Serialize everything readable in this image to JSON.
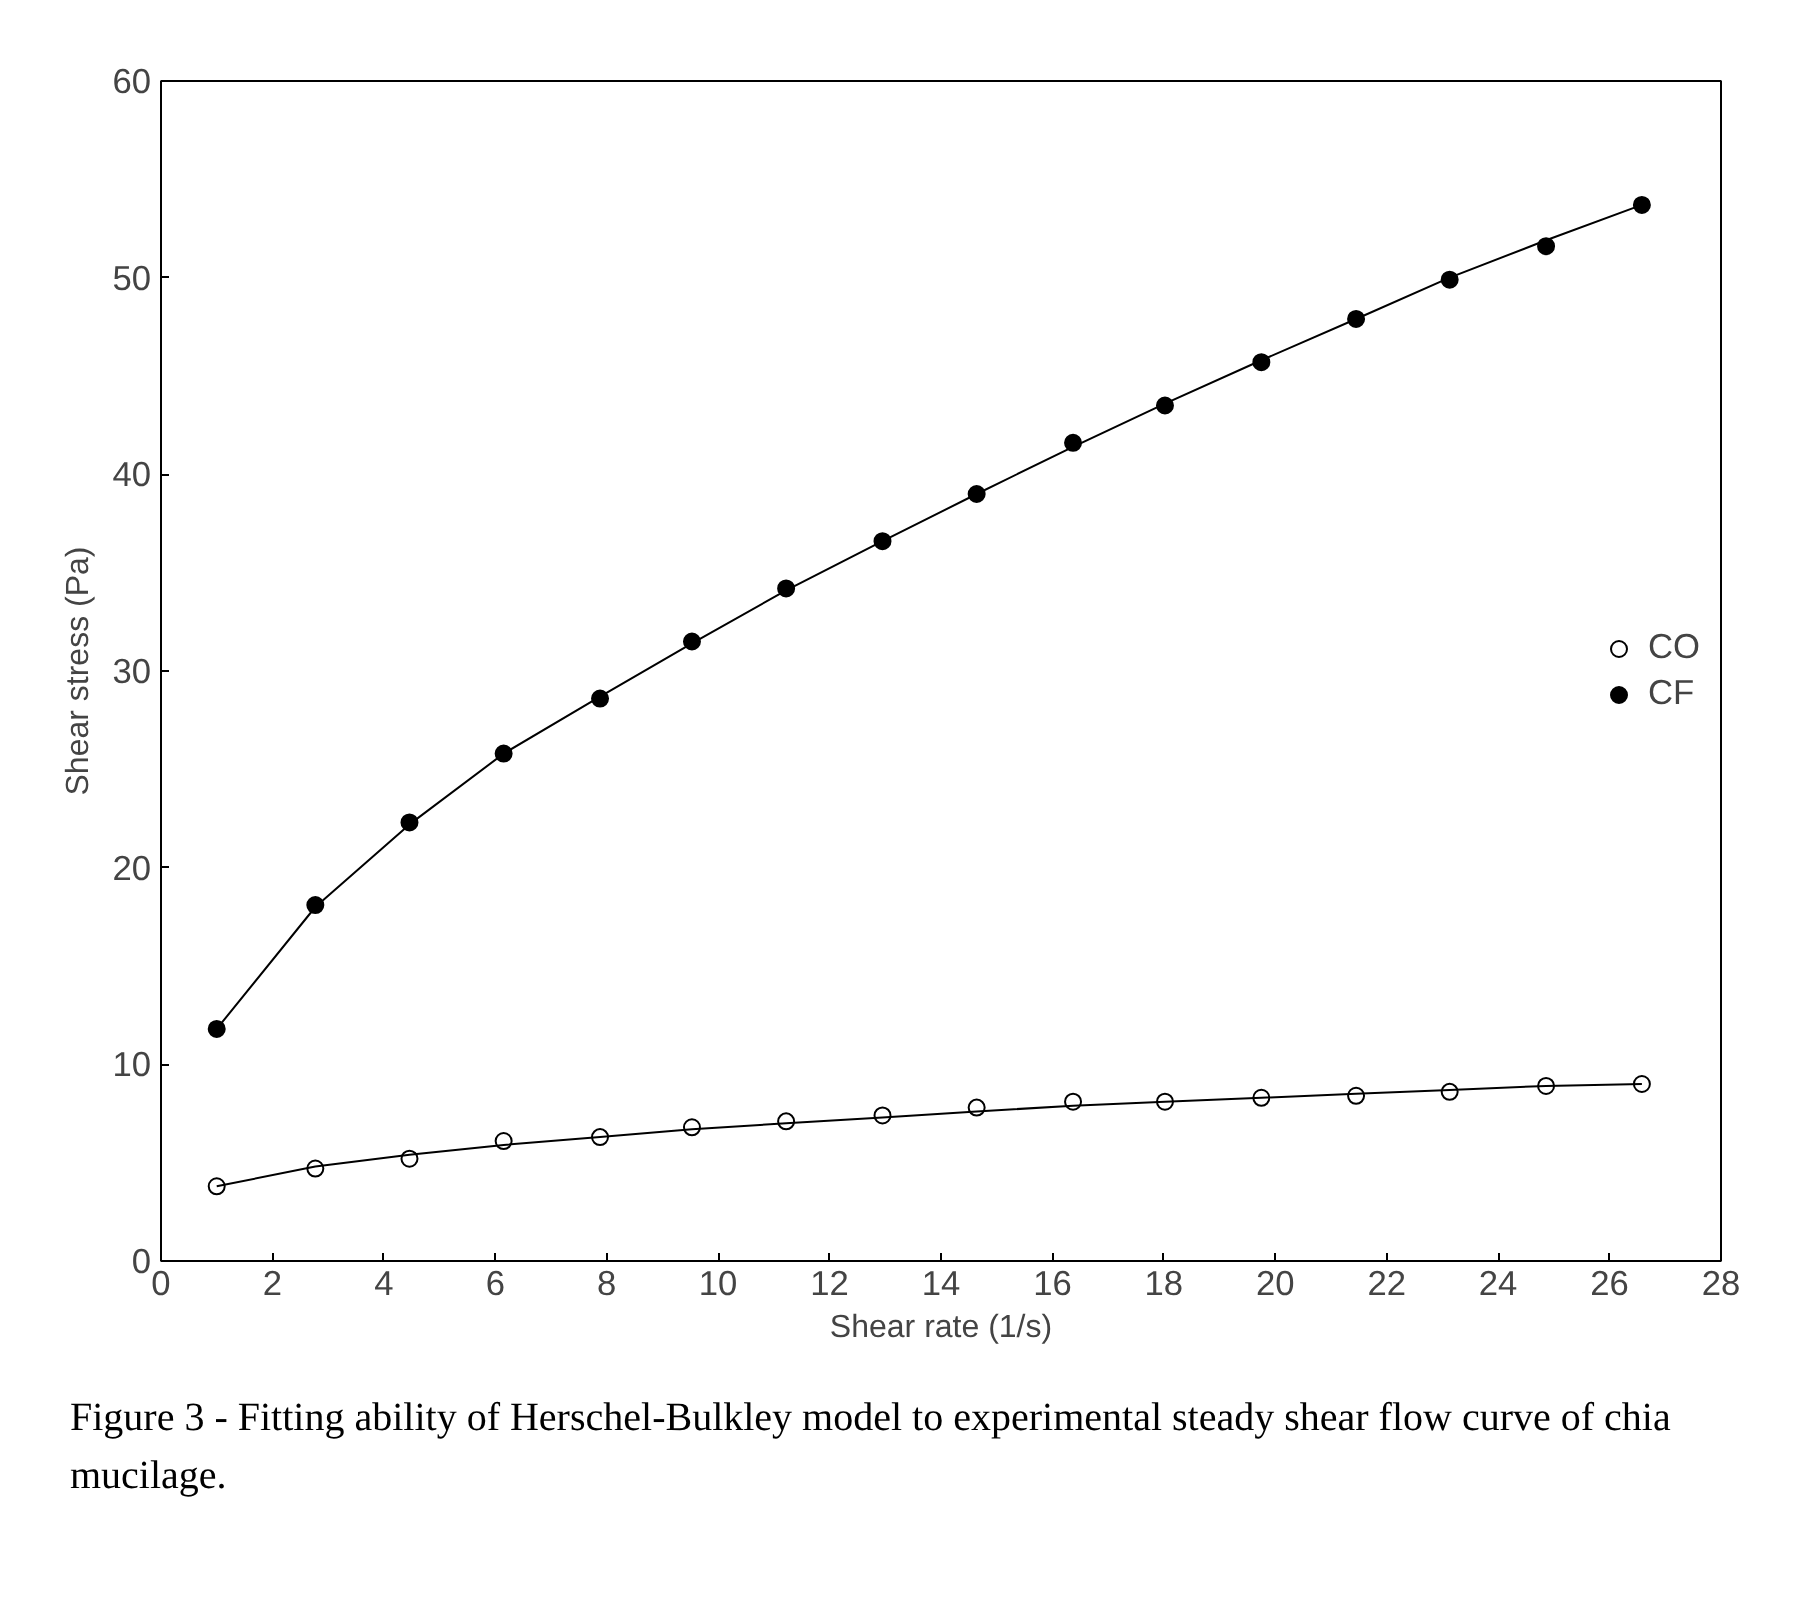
{
  "chart_data": {
    "type": "scatter",
    "xlabel": "Shear rate (1/s)",
    "ylabel": "Shear stress (Pa)",
    "xlim": [
      0,
      28
    ],
    "xticks": [
      0,
      2,
      4,
      6,
      8,
      10,
      12,
      14,
      16,
      18,
      20,
      22,
      24,
      26,
      28
    ],
    "ylim": [
      0,
      60
    ],
    "yticks": [
      0,
      10,
      20,
      30,
      40,
      50,
      60
    ],
    "x": [
      1.0,
      2.77,
      4.46,
      6.15,
      7.88,
      9.53,
      11.22,
      12.95,
      14.64,
      16.37,
      18.02,
      19.75,
      21.45,
      23.13,
      24.86,
      26.58
    ],
    "series": [
      {
        "name": "CO",
        "color": "#ffffff",
        "marker": "circle",
        "values": [
          3.8,
          4.7,
          5.2,
          6.1,
          6.3,
          6.8,
          7.1,
          7.4,
          7.8,
          8.1,
          8.1,
          8.3,
          8.4,
          8.6,
          8.9,
          9.0
        ]
      },
      {
        "name": "CF",
        "color": "#000000",
        "marker": "circle",
        "values": [
          11.8,
          18.1,
          22.3,
          25.8,
          28.6,
          31.5,
          34.2,
          36.6,
          39.0,
          41.6,
          43.5,
          45.7,
          47.9,
          49.9,
          51.6,
          53.7
        ]
      },
      {
        "type": "line",
        "color": "#000000",
        "line_style": "solid",
        "x": [
          1.0,
          2.77,
          4.46,
          6.15,
          7.88,
          9.53,
          11.22,
          12.95,
          14.64,
          16.37,
          18.02,
          19.75,
          21.45,
          23.13,
          24.86,
          26.58
        ],
        "values": [
          3.8,
          4.8,
          5.4,
          5.9,
          6.3,
          6.7,
          7.0,
          7.3,
          7.6,
          7.9,
          8.1,
          8.3,
          8.5,
          8.7,
          8.9,
          9.0
        ]
      },
      {
        "type": "line",
        "color": "#000000",
        "line_style": "solid",
        "x": [
          1.0,
          2.77,
          4.46,
          6.15,
          7.88,
          9.53,
          11.22,
          12.95,
          14.64,
          16.37,
          18.02,
          19.75,
          21.45,
          23.13,
          24.86,
          26.58
        ],
        "values": [
          11.8,
          18.0,
          22.2,
          25.8,
          28.7,
          31.4,
          34.1,
          36.6,
          39.0,
          41.4,
          43.6,
          45.8,
          47.9,
          50.0,
          51.9,
          53.7
        ]
      }
    ],
    "legend": "right",
    "grid": false,
    "annotations": [
      "Figure 3 - Fitting ability of Herschel-Bulkley model to experimental steady shear flow curve of chia mucilage."
    ]
  }
}
